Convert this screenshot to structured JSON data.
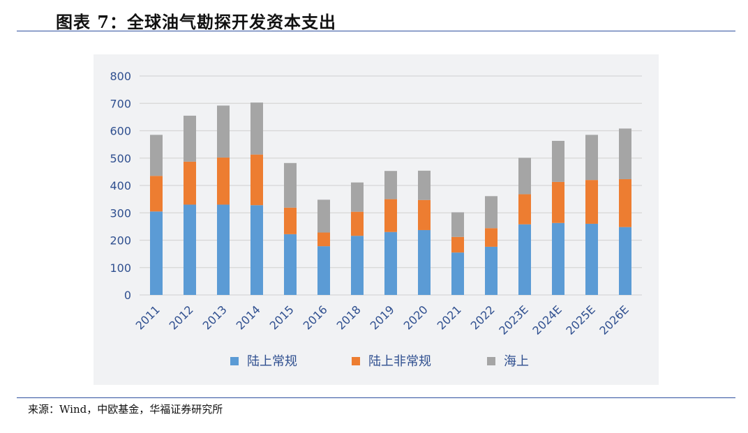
{
  "header": {
    "title": "图表 7：全球油气勘探开发资本支出"
  },
  "footer": {
    "source": "来源：Wind，中欧基金，华福证券研究所"
  },
  "colors": {
    "onshore_conventional": "#5b9bd5",
    "onshore_unconventional": "#ed7d31",
    "offshore": "#a5a5a5",
    "axis_text": "#2f4f8f",
    "grid": "#d6d6d6",
    "rule": "#2e4f9e"
  },
  "chart_data": {
    "type": "bar",
    "stacked": true,
    "title": "",
    "xlabel": "",
    "ylabel": "",
    "ylim": [
      0,
      800
    ],
    "yticks": [
      0,
      100,
      200,
      300,
      400,
      500,
      600,
      700,
      800
    ],
    "grid": true,
    "legend_position": "bottom",
    "categories": [
      "2011",
      "2012",
      "2013",
      "2014",
      "2015",
      "2016",
      "2018",
      "2019",
      "2020",
      "2021",
      "2022",
      "2023E",
      "2024E",
      "2025E",
      "2026E"
    ],
    "series": [
      {
        "name": "陆上常规",
        "values": [
          305,
          330,
          330,
          328,
          222,
          178,
          216,
          230,
          237,
          155,
          176,
          258,
          263,
          260,
          248
        ]
      },
      {
        "name": "陆上非常规",
        "values": [
          130,
          157,
          172,
          185,
          97,
          50,
          88,
          120,
          110,
          57,
          68,
          110,
          150,
          160,
          175
        ]
      },
      {
        "name": "海上",
        "values": [
          150,
          168,
          190,
          190,
          163,
          120,
          107,
          103,
          107,
          90,
          117,
          133,
          150,
          165,
          185
        ]
      }
    ]
  }
}
